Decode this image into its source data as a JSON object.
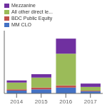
{
  "chart_data": {
    "type": "bar",
    "categories": [
      "2014",
      "2015",
      "2016",
      "2017"
    ],
    "series": [
      {
        "name": "MM CLO",
        "color": "#4472C4",
        "values": [
          3.5,
          5.0,
          7.0,
          2.5
        ]
      },
      {
        "name": "BDC Public Equity",
        "color": "#C0504D",
        "values": [
          1.5,
          2.0,
          2.5,
          0.8
        ]
      },
      {
        "name": "All other direct le...",
        "color": "#9BBB59",
        "values": [
          8.0,
          12.0,
          38.0,
          4.5
        ]
      },
      {
        "name": "Mezzanine",
        "color": "#7030A0",
        "values": [
          2.5,
          4.0,
          18.0,
          4.0
        ]
      }
    ],
    "stacked": true,
    "ylim": [
      0,
      75
    ],
    "grid": false,
    "legend": "top",
    "tick_labels": "x"
  }
}
